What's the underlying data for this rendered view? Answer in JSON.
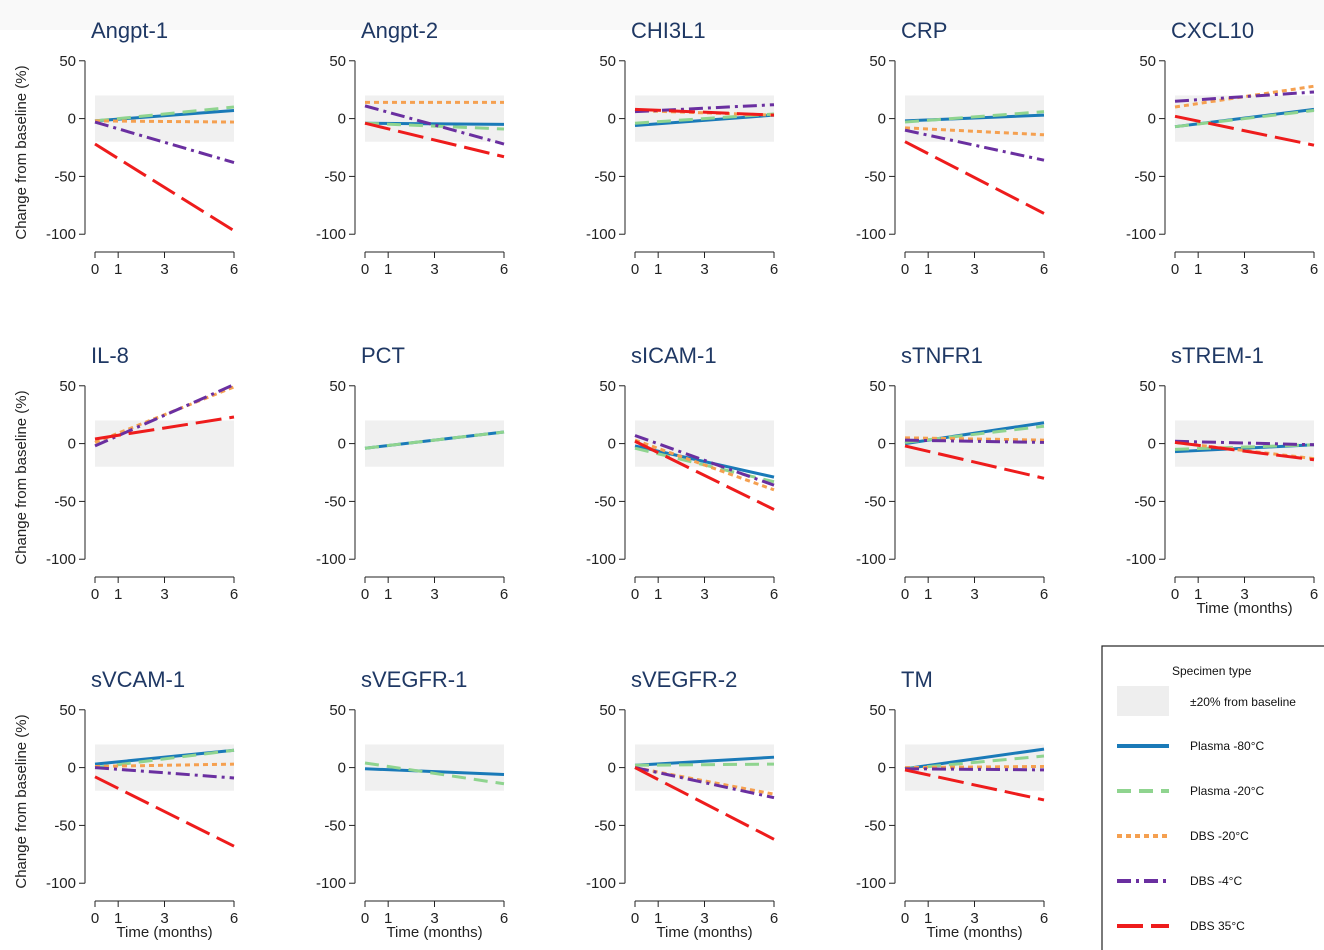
{
  "chart_data": {
    "type": "line",
    "y_label": "Change from baseline (%)",
    "x_label": "Time (months)",
    "x_ticks": [
      0,
      1,
      3,
      6
    ],
    "y_ticks": [
      50,
      0,
      -50,
      -100
    ],
    "ylim": [
      -105,
      55
    ],
    "xlim": [
      0,
      6
    ],
    "reference_band": [
      -20,
      20
    ],
    "legend": {
      "title": "Specimen type",
      "band_label": "±20% from baseline",
      "position": "bottom-right"
    },
    "series_styles": [
      {
        "name": "Plasma -80°C",
        "color": "#1a7ab8",
        "dash": "none",
        "width": 3
      },
      {
        "name": "Plasma -20°C",
        "color": "#8fd48f",
        "dash": "14,8",
        "width": 3
      },
      {
        "name": "DBS -20°C",
        "color": "#f5a050",
        "dash": "5,4",
        "width": 3
      },
      {
        "name": "DBS -4°C",
        "color": "#6a2fa0",
        "dash": "14,5,3,5",
        "width": 3
      },
      {
        "name": "DBS 35°C",
        "color": "#ee1c1c",
        "dash": "26,8",
        "width": 3
      }
    ],
    "panels": [
      {
        "title": "Angpt-1",
        "show_ylabel": true,
        "show_xlabel": false,
        "series": {
          "Plasma -80°C": [
            -2,
            7
          ],
          "Plasma -20°C": [
            -2,
            10
          ],
          "DBS -20°C": [
            -2,
            -3
          ],
          "DBS -4°C": [
            -3,
            -38
          ],
          "DBS 35°C": [
            -22,
            -97
          ]
        }
      },
      {
        "title": "Angpt-2",
        "show_ylabel": false,
        "show_xlabel": false,
        "series": {
          "Plasma -80°C": [
            -4,
            -5
          ],
          "Plasma -20°C": [
            -4,
            -9
          ],
          "DBS -20°C": [
            14,
            14
          ],
          "DBS -4°C": [
            11,
            -22
          ],
          "DBS 35°C": [
            -4,
            -33
          ]
        }
      },
      {
        "title": "CHI3L1",
        "show_ylabel": false,
        "show_xlabel": false,
        "series": {
          "Plasma -80°C": [
            -6,
            3
          ],
          "Plasma -20°C": [
            -4,
            4
          ],
          "DBS -20°C": [
            7,
            3
          ],
          "DBS -4°C": [
            6,
            12
          ],
          "DBS 35°C": [
            8,
            3
          ]
        }
      },
      {
        "title": "CRP",
        "show_ylabel": false,
        "show_xlabel": false,
        "series": {
          "Plasma -80°C": [
            -2,
            3
          ],
          "Plasma -20°C": [
            -3,
            6
          ],
          "DBS -20°C": [
            -8,
            -14
          ],
          "DBS -4°C": [
            -10,
            -36
          ],
          "DBS 35°C": [
            -20,
            -82
          ]
        }
      },
      {
        "title": "CXCL10",
        "show_ylabel": false,
        "show_xlabel": false,
        "series": {
          "Plasma -80°C": [
            -7,
            8
          ],
          "Plasma -20°C": [
            -7,
            7
          ],
          "DBS -20°C": [
            10,
            28
          ],
          "DBS -4°C": [
            15,
            23
          ],
          "DBS 35°C": [
            2,
            -23
          ]
        }
      },
      {
        "title": "IL-8",
        "show_ylabel": true,
        "show_xlabel": false,
        "series": {
          "DBS -20°C": [
            1,
            49
          ],
          "DBS -4°C": [
            -2,
            51
          ],
          "DBS 35°C": [
            4,
            23
          ]
        }
      },
      {
        "title": "PCT",
        "show_ylabel": false,
        "show_xlabel": false,
        "series": {
          "Plasma -80°C": [
            -4,
            10
          ],
          "Plasma -20°C": [
            -4,
            10
          ]
        }
      },
      {
        "title": "sICAM-1",
        "show_ylabel": false,
        "show_xlabel": false,
        "series": {
          "Plasma -80°C": [
            -2,
            -29
          ],
          "Plasma -20°C": [
            -4,
            -33
          ],
          "DBS -20°C": [
            3,
            -40
          ],
          "DBS -4°C": [
            7,
            -36
          ],
          "DBS 35°C": [
            2,
            -57
          ]
        }
      },
      {
        "title": "sTNFR1",
        "show_ylabel": false,
        "show_xlabel": false,
        "series": {
          "Plasma -80°C": [
            0,
            18
          ],
          "Plasma -20°C": [
            1,
            15
          ],
          "DBS -20°C": [
            5,
            3
          ],
          "DBS -4°C": [
            3,
            1
          ],
          "DBS 35°C": [
            -2,
            -30
          ]
        }
      },
      {
        "title": "sTREM-1",
        "show_ylabel": false,
        "show_xlabel": true,
        "series": {
          "Plasma -80°C": [
            -7,
            -1
          ],
          "Plasma -20°C": [
            -5,
            -1
          ],
          "DBS -20°C": [
            1,
            -13
          ],
          "DBS -4°C": [
            2,
            -1
          ],
          "DBS 35°C": [
            1,
            -14
          ]
        }
      },
      {
        "title": "sVCAM-1",
        "show_ylabel": true,
        "show_xlabel": true,
        "series": {
          "Plasma -80°C": [
            3,
            15
          ],
          "Plasma -20°C": [
            0,
            15
          ],
          "DBS -20°C": [
            1,
            3
          ],
          "DBS -4°C": [
            0,
            -9
          ],
          "DBS 35°C": [
            -8,
            -68
          ]
        }
      },
      {
        "title": "sVEGFR-1",
        "show_ylabel": false,
        "show_xlabel": true,
        "series": {
          "Plasma -80°C": [
            -1,
            -6
          ],
          "Plasma -20°C": [
            4,
            -14
          ]
        }
      },
      {
        "title": "sVEGFR-2",
        "show_ylabel": false,
        "show_xlabel": true,
        "series": {
          "Plasma -80°C": [
            2,
            9
          ],
          "Plasma -20°C": [
            2,
            3
          ],
          "DBS -20°C": [
            0,
            -23
          ],
          "DBS -4°C": [
            0,
            -26
          ],
          "DBS 35°C": [
            0,
            -62
          ]
        }
      },
      {
        "title": "TM",
        "show_ylabel": false,
        "show_xlabel": true,
        "series": {
          "Plasma -80°C": [
            -1,
            16
          ],
          "Plasma -20°C": [
            -1,
            10
          ],
          "DBS -20°C": [
            0,
            1
          ],
          "DBS -4°C": [
            -1,
            -2
          ],
          "DBS 35°C": [
            -2,
            -28
          ]
        }
      }
    ]
  }
}
